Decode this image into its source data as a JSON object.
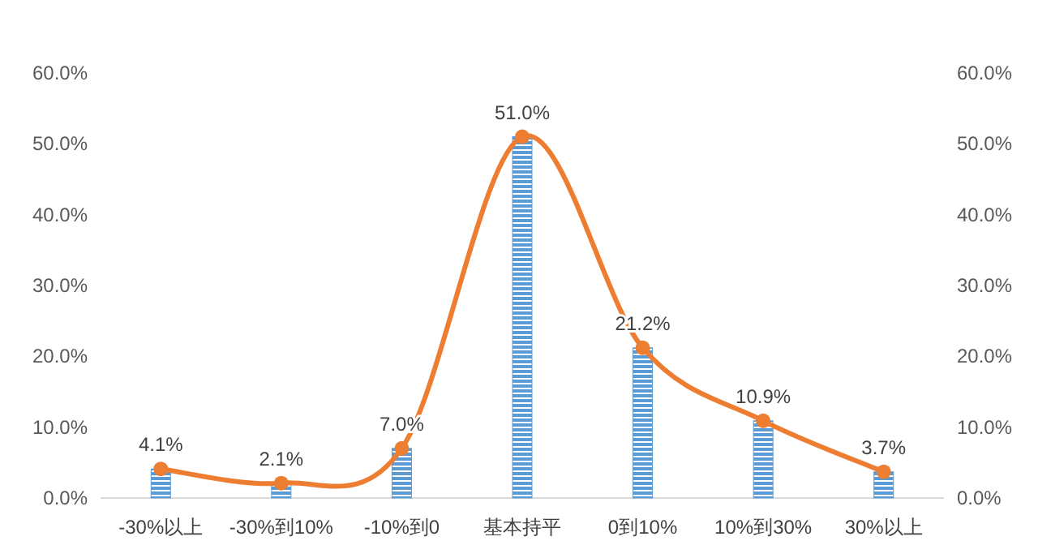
{
  "chart_data": {
    "type": "bar",
    "categories": [
      "-30%以上",
      "-30%到10%",
      "-10%到0",
      "基本持平",
      "0到10%",
      "10%到30%",
      "30%以上"
    ],
    "series": [
      {
        "color": "#5b9bd5",
        "values": [
          4.1,
          2.1,
          7.0,
          51.0,
          21.2,
          10.9,
          3.7
        ]
      },
      {
        "type": "line",
        "color": "#ed7d31",
        "marker": "circle",
        "values": [
          4.1,
          2.1,
          7.0,
          51.0,
          21.2,
          10.9,
          3.7
        ],
        "value_labels": [
          "4.1%",
          "2.1%",
          "7.0%",
          "51.0%",
          "21.2%",
          "10.9%",
          "3.7%"
        ]
      }
    ],
    "ylim": [
      0,
      60
    ],
    "yticks": [
      {
        "value": 0,
        "label": "0.0%"
      },
      {
        "value": 10,
        "label": "10.0%"
      },
      {
        "value": 20,
        "label": "20.0%"
      },
      {
        "value": 30,
        "label": "30.0%"
      },
      {
        "value": 40,
        "label": "40.0%"
      },
      {
        "value": 50,
        "label": "50.0%"
      },
      {
        "value": 60,
        "label": "60.0%"
      }
    ],
    "y2lim": [
      0,
      60
    ],
    "y2ticks": [
      {
        "value": 0,
        "label": "0.0%"
      },
      {
        "value": 10,
        "label": "10.0%"
      },
      {
        "value": 20,
        "label": "20.0%"
      },
      {
        "value": 30,
        "label": "30.0%"
      },
      {
        "value": 40,
        "label": "40.0%"
      },
      {
        "value": 50,
        "label": "50.0%"
      },
      {
        "value": 60,
        "label": "60.0%"
      }
    ],
    "grid": false
  }
}
